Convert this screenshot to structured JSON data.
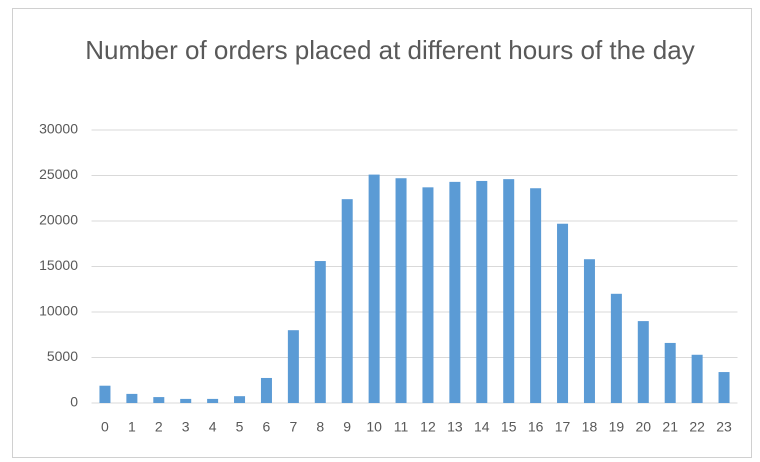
{
  "chart_data": {
    "type": "bar",
    "title": "Number of orders placed at different hours of the day",
    "categories": [
      "0",
      "1",
      "2",
      "3",
      "4",
      "5",
      "6",
      "7",
      "8",
      "9",
      "10",
      "11",
      "12",
      "13",
      "14",
      "15",
      "16",
      "17",
      "18",
      "19",
      "20",
      "21",
      "22",
      "23"
    ],
    "values": [
      1900,
      1000,
      650,
      450,
      450,
      750,
      2750,
      8000,
      15600,
      22400,
      25100,
      24700,
      23700,
      24300,
      24400,
      24600,
      23600,
      19700,
      15800,
      12000,
      9000,
      6600,
      5300,
      3400
    ],
    "color": "#5b9bd5",
    "ylim": [
      0,
      30000
    ],
    "yticks": [
      0,
      5000,
      10000,
      15000,
      20000,
      25000,
      30000
    ],
    "grid": true
  }
}
